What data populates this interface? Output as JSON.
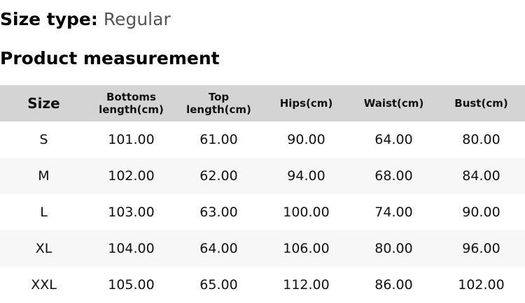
{
  "size_type": {
    "label": "Size type:",
    "value": "Regular"
  },
  "title": "Product measurement",
  "table": {
    "headers": [
      "Size",
      "Bottoms length(cm)",
      "Top length(cm)",
      "Hips(cm)",
      "Waist(cm)",
      "Bust(cm)"
    ],
    "rows": [
      [
        "S",
        "101.00",
        "61.00",
        "90.00",
        "64.00",
        "80.00"
      ],
      [
        "M",
        "102.00",
        "62.00",
        "94.00",
        "68.00",
        "84.00"
      ],
      [
        "L",
        "103.00",
        "63.00",
        "100.00",
        "74.00",
        "90.00"
      ],
      [
        "XL",
        "104.00",
        "64.00",
        "106.00",
        "80.00",
        "96.00"
      ],
      [
        "XXL",
        "105.00",
        "65.00",
        "112.00",
        "86.00",
        "102.00"
      ]
    ]
  },
  "colors": {
    "header_bg": "#d4d4d4",
    "alt_row_bg": "#f7f7f7"
  }
}
